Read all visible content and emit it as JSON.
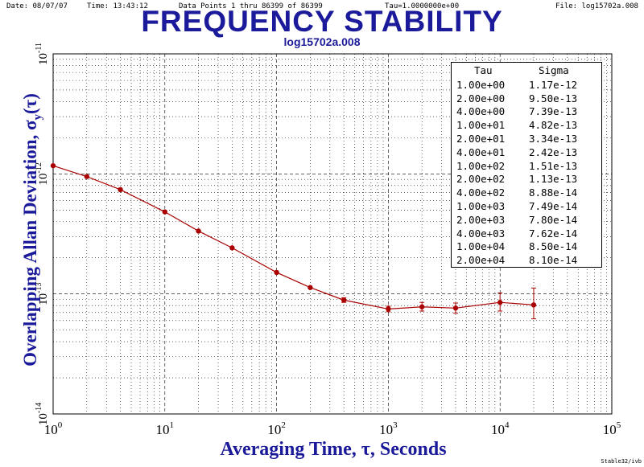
{
  "header": {
    "date": "Date: 08/07/07",
    "time": "Time: 13:43:12",
    "data_points": "Data Points 1 thru 86399 of 86399",
    "tau0": "Tau=1.0000000e+00",
    "file": "File: log15702a.008"
  },
  "credit": "Stable32/ivb",
  "colors": {
    "title": "#1a1a9a",
    "series": "#aa0000",
    "grid": "#000000"
  },
  "chart_data": {
    "type": "line",
    "title": "FREQUENCY STABILITY",
    "subtitle": "log15702a.008",
    "xlabel": "Averaging Time, τ, Seconds",
    "ylabel": "Overlapping Allan Deviation, σy(τ)",
    "x_scale": "log",
    "y_scale": "log",
    "xlim": [
      1,
      100000
    ],
    "ylim": [
      1e-14,
      1e-11
    ],
    "grid": true,
    "x_ticks": [
      {
        "base": "10",
        "exp": "0"
      },
      {
        "base": "10",
        "exp": "1"
      },
      {
        "base": "10",
        "exp": "2"
      },
      {
        "base": "10",
        "exp": "3"
      },
      {
        "base": "10",
        "exp": "4"
      },
      {
        "base": "10",
        "exp": "5"
      }
    ],
    "y_ticks": [
      {
        "base": "10",
        "exp": "-14"
      },
      {
        "base": "10",
        "exp": "-13"
      },
      {
        "base": "10",
        "exp": "-12"
      },
      {
        "base": "10",
        "exp": "-11"
      }
    ],
    "series": [
      {
        "x": [
          1,
          2,
          4,
          10,
          20,
          40,
          100,
          200,
          400,
          1000,
          2000,
          4000,
          10000,
          20000
        ],
        "y": [
          1.17e-12,
          9.5e-13,
          7.39e-13,
          4.82e-13,
          3.34e-13,
          2.42e-13,
          1.51e-13,
          1.13e-13,
          8.88e-14,
          7.49e-14,
          7.8e-14,
          7.62e-14,
          8.5e-14,
          8.1e-14
        ],
        "err_low": [
          null,
          null,
          null,
          null,
          null,
          null,
          null,
          null,
          8.5e-14,
          7.1e-14,
          7.2e-14,
          6.9e-14,
          7.2e-14,
          6.2e-14
        ],
        "err_high": [
          null,
          null,
          null,
          null,
          null,
          null,
          null,
          null,
          9.3e-14,
          7.9e-14,
          8.5e-14,
          8.4e-14,
          1.02e-13,
          1.12e-13
        ]
      }
    ],
    "table": {
      "headers": [
        "Tau",
        "Sigma"
      ],
      "rows": [
        [
          "1.00e+00",
          "1.17e-12"
        ],
        [
          "2.00e+00",
          "9.50e-13"
        ],
        [
          "4.00e+00",
          "7.39e-13"
        ],
        [
          "1.00e+01",
          "4.82e-13"
        ],
        [
          "2.00e+01",
          "3.34e-13"
        ],
        [
          "4.00e+01",
          "2.42e-13"
        ],
        [
          "1.00e+02",
          "1.51e-13"
        ],
        [
          "2.00e+02",
          "1.13e-13"
        ],
        [
          "4.00e+02",
          "8.88e-14"
        ],
        [
          "1.00e+03",
          "7.49e-14"
        ],
        [
          "2.00e+03",
          "7.80e-14"
        ],
        [
          "4.00e+03",
          "7.62e-14"
        ],
        [
          "1.00e+04",
          "8.50e-14"
        ],
        [
          "2.00e+04",
          "8.10e-14"
        ]
      ]
    }
  }
}
